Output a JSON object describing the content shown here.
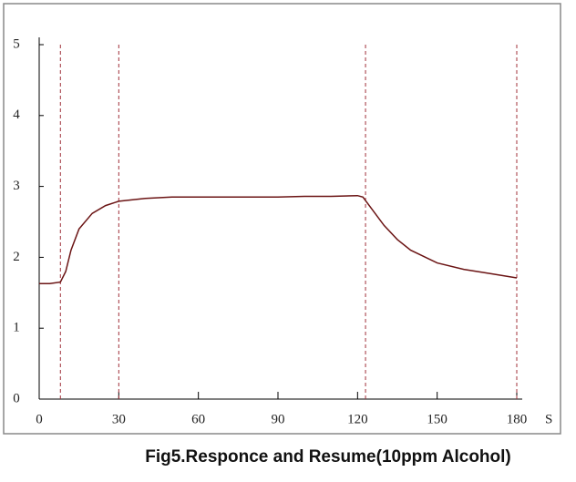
{
  "chart_data": {
    "type": "line",
    "title": "Fig5.Responce and Resume(10ppm Alcohol)",
    "xlabel": "S",
    "x": [
      0,
      4,
      8,
      10,
      12,
      15,
      20,
      25,
      30,
      40,
      50,
      60,
      70,
      80,
      90,
      100,
      110,
      120,
      122,
      125,
      130,
      135,
      140,
      150,
      160,
      170,
      180
    ],
    "values": [
      1.63,
      1.63,
      1.65,
      1.8,
      2.1,
      2.4,
      2.62,
      2.73,
      2.79,
      2.83,
      2.85,
      2.85,
      2.85,
      2.85,
      2.85,
      2.86,
      2.86,
      2.87,
      2.85,
      2.7,
      2.45,
      2.25,
      2.1,
      1.92,
      1.83,
      1.77,
      1.71
    ],
    "color": "#6b1414",
    "vlines": [
      8,
      30,
      123,
      180
    ],
    "vline_color": "#a0303a",
    "xlim": [
      0,
      180
    ],
    "xticks": [
      0,
      30,
      60,
      90,
      120,
      150,
      180
    ],
    "ylim": [
      0,
      5
    ],
    "yticks": [
      0,
      1,
      2,
      3,
      4,
      5
    ]
  }
}
